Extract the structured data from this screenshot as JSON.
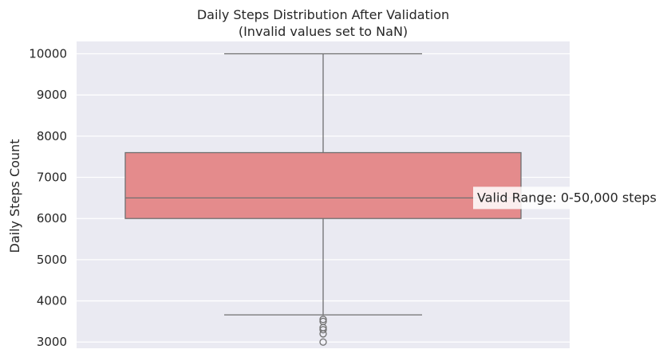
{
  "chart_data": {
    "type": "box",
    "title": "Daily Steps Distribution After Validation",
    "subtitle": "(Invalid values set to NaN)",
    "xlabel": "",
    "ylabel": "Daily Steps Count",
    "ylim": [
      2850,
      10300
    ],
    "yticks": [
      3000,
      4000,
      5000,
      6000,
      7000,
      8000,
      9000,
      10000
    ],
    "grid": true,
    "box": {
      "whisker_low": 3660,
      "q1": 6000,
      "median": 6500,
      "q3": 7600,
      "whisker_high": 10000,
      "outliers": [
        3000,
        3200,
        3300,
        3350,
        3500,
        3550
      ]
    },
    "annotation": {
      "text": "Valid Range: 0-50,000 steps",
      "y": 6500
    },
    "colors": {
      "box_fill": "#e48b8c",
      "line": "#707070",
      "plot_bg": "#eaeaf2",
      "grid": "#ffffff"
    }
  }
}
